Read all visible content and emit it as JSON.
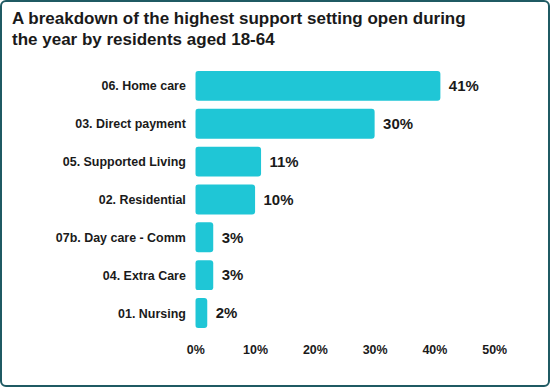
{
  "chart_data": {
    "type": "bar",
    "orientation": "horizontal",
    "title": "A breakdown of the highest support setting open during the year by residents aged 18-64",
    "categories": [
      "06. Home care",
      "03. Direct payment",
      "05. Supported Living",
      "02. Residential",
      "07b. Day care - Comm",
      "04. Extra Care",
      "01. Nursing"
    ],
    "values": [
      41,
      30,
      11,
      10,
      3,
      3,
      2
    ],
    "value_labels": [
      "41%",
      "30%",
      "11%",
      "10%",
      "3%",
      "3%",
      "2%"
    ],
    "data_labels": true,
    "color": "#1fc6d6",
    "xlim": [
      0,
      50
    ],
    "xticks": [
      {
        "value": 0,
        "label": "0%"
      },
      {
        "value": 10,
        "label": "10%"
      },
      {
        "value": 20,
        "label": "20%"
      },
      {
        "value": 30,
        "label": "30%"
      },
      {
        "value": 40,
        "label": "40%"
      },
      {
        "value": 50,
        "label": "50%"
      }
    ],
    "grid": false
  }
}
